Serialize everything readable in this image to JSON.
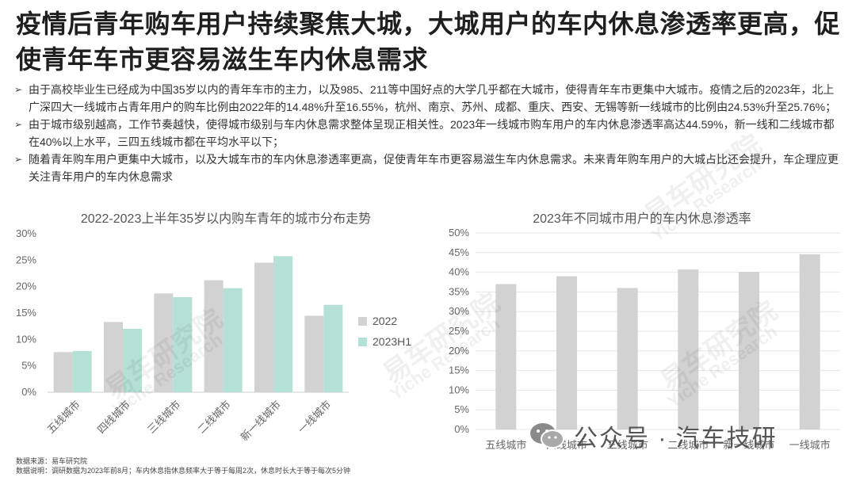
{
  "title": "疫情后青年购车用户持续聚焦大城，大城用户的车内休息渗透率更高，促使青年车市更容易滋生车内休息需求",
  "bullets": [
    "由于高校毕业生已经成为中国35岁以内的青年车市的主力，以及985、211等中国好点的大学几乎都在大城市，使得青年车市更集中大城市。疫情之后的2023年，北上广深四大一线城市占青年用户的购车比例由2022年的14.48%升至16.55%，杭州、南京、苏州、成都、重庆、西安、无锡等新一线城市的比例由24.53%升至25.76%；",
    "由于城市级别越高，工作节奏越快，使得城市级别与车内休息需求整体呈现正相关性。2023年一线城市购车用户的车内休息渗透率高达44.59%，新一线和二线城市都在40%以上水平，三四五线城市都在平均水平以下；",
    "随着青年购车用户更集中大城市，以及大城车市的车内休息渗透率更高，促使青年车市更容易滋生车内休息需求。未来青年购车用户的大城占比还会提升，车企理应更关注青年用户的车内休息需求"
  ],
  "bullet_mark": "➢",
  "watermark_text": "易车研究院",
  "watermark_sub": "Yiche Research",
  "footer": {
    "source": "数据来源：易车研究院",
    "note": "数据说明：调研数据为2023年前8月；车内休息指休息频率大于等于每周2次，休息时长大于等于每次5分钟"
  },
  "wechat_label": "公众号 · 汽车技研",
  "colors": {
    "series_2022": "#d2d2d2",
    "series_2023": "#b5e0d6",
    "axis_text": "#666666",
    "grid": "#e6e6e6"
  },
  "chart_data": [
    {
      "type": "bar",
      "title": "2022-2023上半年35岁以内购车青年的城市分布走势",
      "categories": [
        "五线城市",
        "四线城市",
        "三线城市",
        "二线城市",
        "新一线城市",
        "一线城市"
      ],
      "series": [
        {
          "name": "2022",
          "values": [
            7.6,
            13.3,
            18.7,
            21.2,
            24.53,
            14.48
          ]
        },
        {
          "name": "2023H1",
          "values": [
            7.8,
            12.0,
            18.0,
            19.7,
            25.76,
            16.55
          ]
        }
      ],
      "yticks": [
        "0%",
        "5%",
        "10%",
        "15%",
        "20%",
        "25%",
        "30%"
      ],
      "ylim": [
        0,
        30
      ],
      "legend_position": "right",
      "grid": false
    },
    {
      "type": "bar",
      "title": "2023年不同城市用户的车内休息渗透率",
      "categories": [
        "五线城市",
        "四线城市",
        "三线城市",
        "二线城市",
        "新一线城市",
        "一线城市"
      ],
      "series": [
        {
          "name": "",
          "values": [
            37.0,
            39.0,
            36.0,
            40.7,
            40.1,
            44.59
          ]
        }
      ],
      "yticks": [
        "0%",
        "5%",
        "10%",
        "15%",
        "20%",
        "25%",
        "30%",
        "35%",
        "40%",
        "45%",
        "50%"
      ],
      "ylim": [
        0,
        50
      ],
      "grid": true
    }
  ]
}
